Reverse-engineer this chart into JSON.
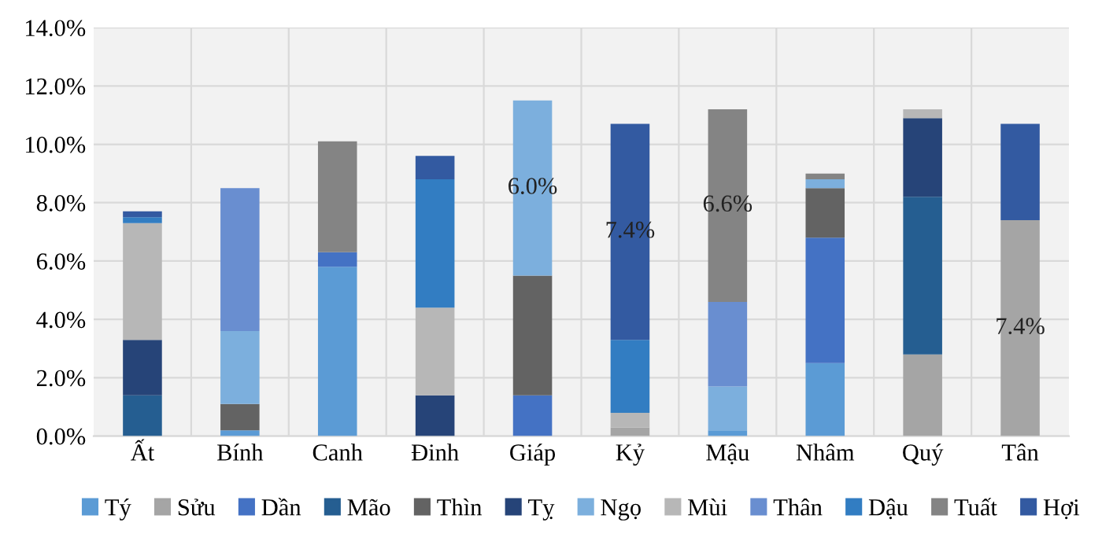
{
  "chart_data": {
    "type": "bar",
    "stacked": true,
    "categories": [
      "Ất",
      "Bính",
      "Canh",
      "Đinh",
      "Giáp",
      "Kỷ",
      "Mậu",
      "Nhâm",
      "Quý",
      "Tân"
    ],
    "series": [
      {
        "name": "Tý",
        "color": "#5b9bd5",
        "values": [
          null,
          0.2,
          5.8,
          null,
          null,
          null,
          0.2,
          2.5,
          null,
          null
        ]
      },
      {
        "name": "Sửu",
        "color": "#a5a5a5",
        "values": [
          0,
          null,
          null,
          null,
          null,
          0.3,
          null,
          null,
          2.8,
          7.4
        ],
        "value_labels": [
          null,
          null,
          null,
          null,
          null,
          null,
          null,
          null,
          null,
          "7.4%"
        ]
      },
      {
        "name": "Dần",
        "color": "#4472c4",
        "values": [
          null,
          0,
          0.5,
          null,
          1.4,
          null,
          0,
          4.3,
          null,
          null
        ]
      },
      {
        "name": "Mão",
        "color": "#255e91",
        "values": [
          1.4,
          null,
          null,
          0,
          null,
          0,
          null,
          null,
          5.4,
          0
        ]
      },
      {
        "name": "Thìn",
        "color": "#636363",
        "values": [
          null,
          0.9,
          0,
          null,
          4.1,
          null,
          0,
          1.7,
          null,
          null
        ]
      },
      {
        "name": "Tỵ",
        "color": "#264478",
        "values": [
          1.9,
          null,
          null,
          1.4,
          null,
          0,
          null,
          null,
          2.7,
          0
        ]
      },
      {
        "name": "Ngọ",
        "color": "#7cafdd",
        "values": [
          null,
          2.5,
          0,
          null,
          6.0,
          null,
          1.5,
          0.3,
          null,
          null
        ],
        "value_labels": [
          null,
          null,
          null,
          null,
          "6.0%",
          null,
          null,
          null,
          null,
          null
        ]
      },
      {
        "name": "Mùi",
        "color": "#b7b7b7",
        "values": [
          4.0,
          null,
          null,
          3.0,
          null,
          0.5,
          null,
          null,
          0.3,
          0
        ]
      },
      {
        "name": "Thân",
        "color": "#698ed0",
        "values": [
          null,
          4.9,
          0,
          null,
          0,
          null,
          2.9,
          0,
          null,
          null
        ]
      },
      {
        "name": "Dậu",
        "color": "#327dc2",
        "values": [
          0.2,
          null,
          null,
          4.4,
          null,
          2.5,
          null,
          null,
          0,
          0
        ]
      },
      {
        "name": "Tuất",
        "color": "#848484",
        "values": [
          null,
          0,
          3.8,
          null,
          0,
          null,
          6.6,
          0.2,
          null,
          null
        ],
        "value_labels": [
          null,
          null,
          null,
          null,
          null,
          null,
          "6.6%",
          null,
          null,
          null
        ]
      },
      {
        "name": "Hợi",
        "color": "#335aa1",
        "values": [
          0.2,
          null,
          null,
          0.8,
          null,
          7.4,
          null,
          null,
          0,
          3.3
        ],
        "value_labels": [
          null,
          null,
          null,
          null,
          null,
          "7.4%",
          null,
          null,
          null,
          null
        ]
      }
    ],
    "ylim": [
      0,
      14
    ],
    "yticks": [
      {
        "value": 0,
        "label": "0.0%"
      },
      {
        "value": 2,
        "label": "2.0%"
      },
      {
        "value": 4,
        "label": "4.0%"
      },
      {
        "value": 6,
        "label": "6.0%"
      },
      {
        "value": 8,
        "label": "8.0%"
      },
      {
        "value": 10,
        "label": "10.0%"
      },
      {
        "value": 12,
        "label": "12.0%"
      },
      {
        "value": 14,
        "label": "14.0%"
      }
    ],
    "grid": true,
    "legend": "bottom"
  }
}
